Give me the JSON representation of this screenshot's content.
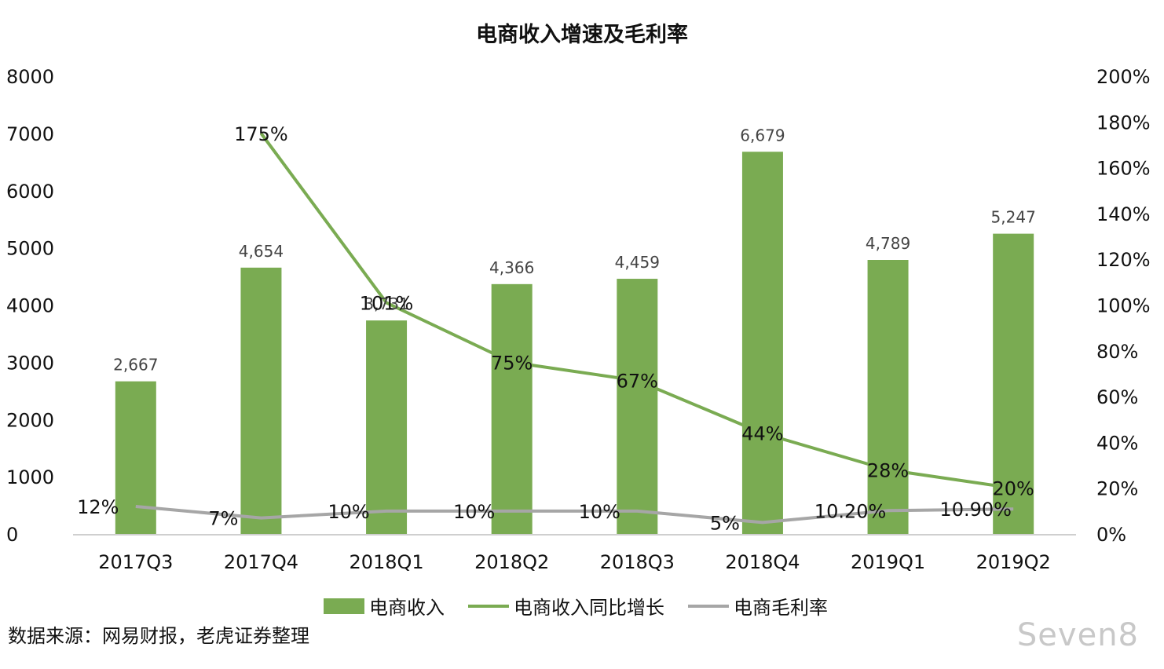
{
  "title": "电商收入增速及毛利率",
  "source": "数据来源：网易财报，老虎证券整理",
  "watermark": "Seven8",
  "colors": {
    "bar": "#7aab52",
    "growth": "#7aab52",
    "margin": "#a6a6a6",
    "axis": "#bfbfbf"
  },
  "chart_data": {
    "type": "bar",
    "categories": [
      "2017Q3",
      "2017Q4",
      "2018Q1",
      "2018Q2",
      "2018Q3",
      "2018Q4",
      "2019Q1",
      "2019Q2"
    ],
    "y_left": {
      "min": 0,
      "max": 8000,
      "ticks": [
        "0",
        "1000",
        "2000",
        "3000",
        "4000",
        "5000",
        "6000",
        "7000",
        "8000"
      ]
    },
    "y_right": {
      "min": 0,
      "max": 200,
      "ticks": [
        "0%",
        "20%",
        "40%",
        "60%",
        "80%",
        "100%",
        "120%",
        "140%",
        "160%",
        "180%",
        "200%"
      ]
    },
    "series": [
      {
        "name": "电商收入",
        "type": "bar",
        "axis": "left",
        "values": [
          2667,
          4654,
          3731,
          4366,
          4459,
          6679,
          4789,
          5247
        ],
        "labels": [
          "2,667",
          "4,654",
          "3,731",
          "4,366",
          "4,459",
          "6,679",
          "4,789",
          "5,247"
        ]
      },
      {
        "name": "电商收入同比增长",
        "type": "line",
        "axis": "right",
        "values": [
          null,
          175,
          101,
          75,
          67,
          44,
          28,
          20
        ],
        "labels": [
          "",
          "175%",
          "101%",
          "75%",
          "67%",
          "44%",
          "28%",
          "20%"
        ]
      },
      {
        "name": "电商毛利率",
        "type": "line",
        "axis": "right",
        "values": [
          12,
          7,
          10,
          10,
          10,
          5,
          10.2,
          10.9
        ],
        "labels": [
          "12%",
          "7%",
          "10%",
          "10%",
          "10%",
          "5%",
          "10.20%",
          "10.90%"
        ]
      }
    ],
    "legend_position": "bottom",
    "grid": false
  }
}
